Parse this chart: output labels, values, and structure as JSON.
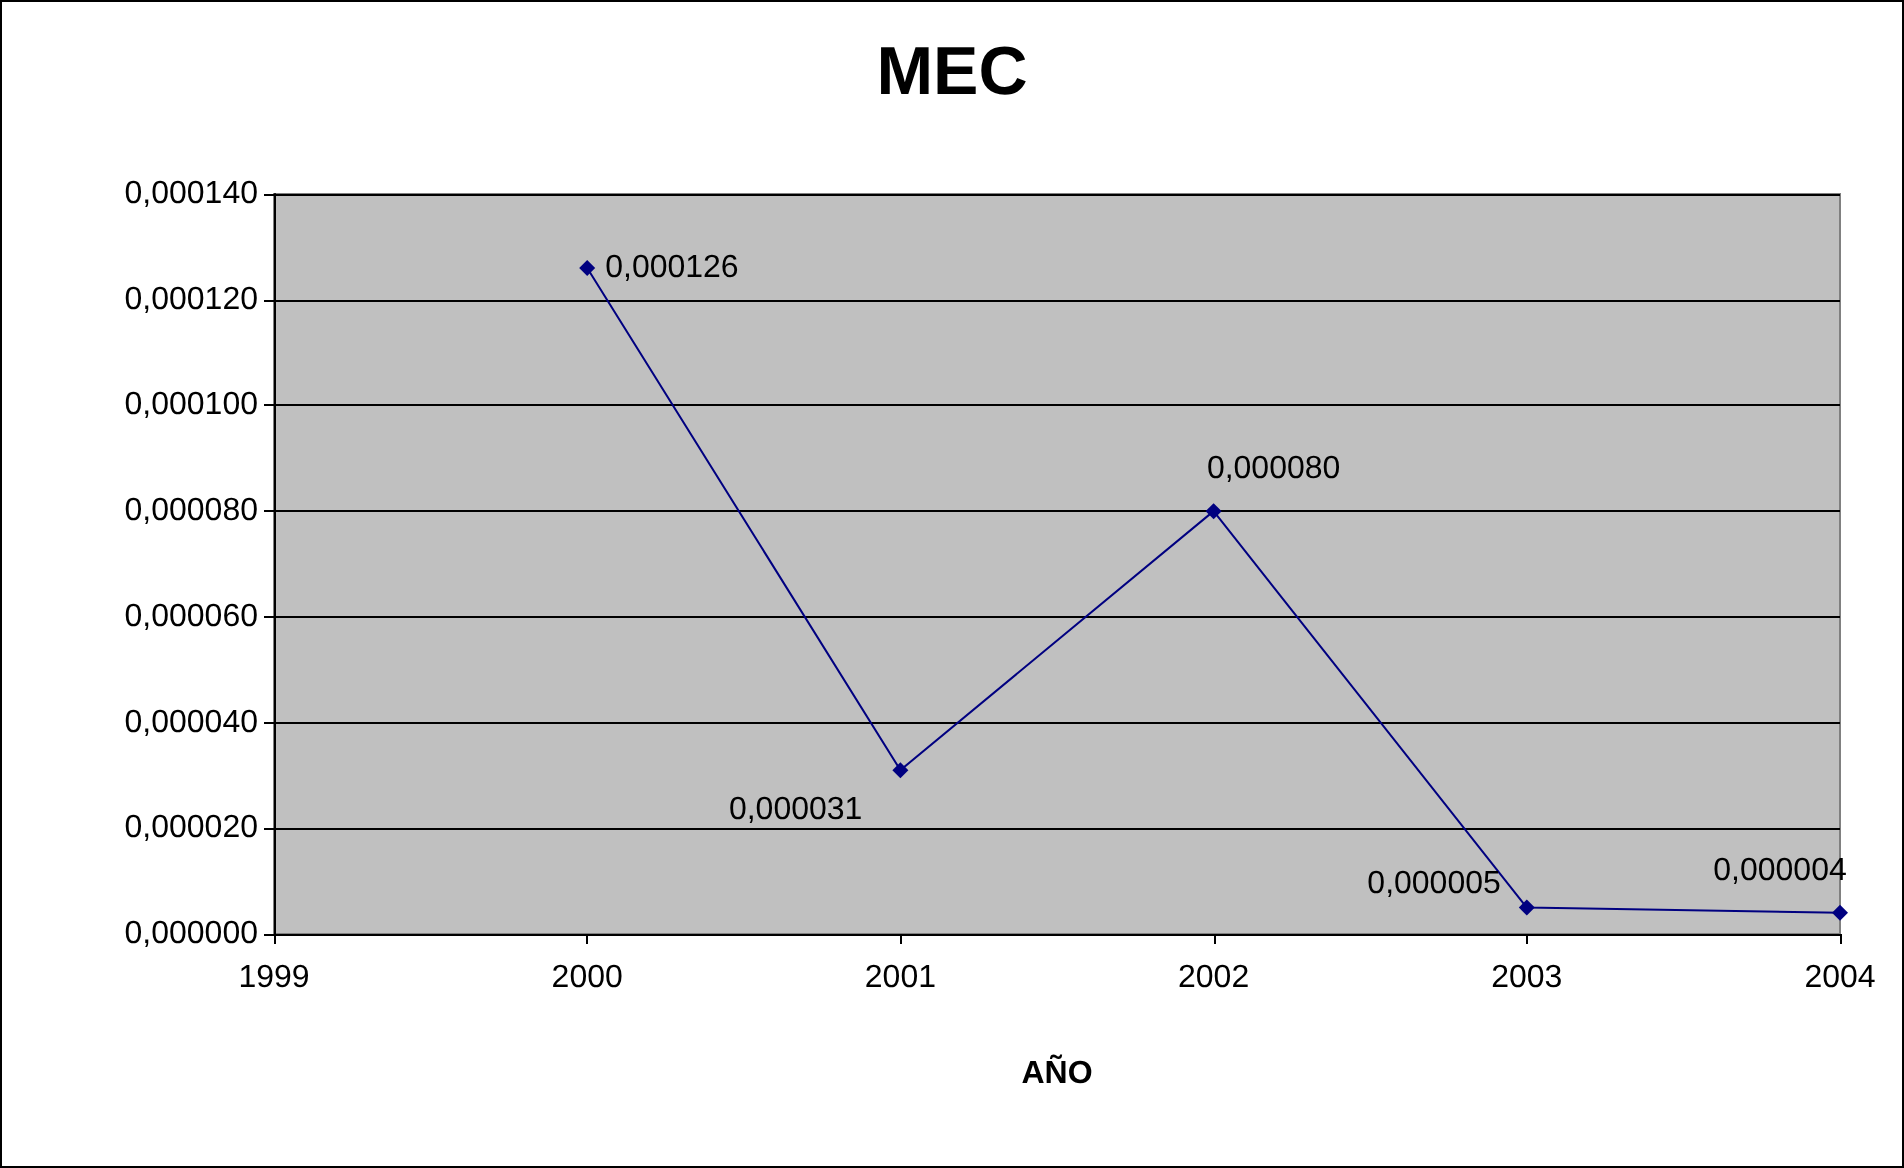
{
  "chart_data": {
    "type": "line",
    "title": "MEC",
    "xlabel": "AÑO",
    "x": [
      2000,
      2001,
      2002,
      2003,
      2004
    ],
    "series": [
      {
        "color": "#000080",
        "values": [
          0.000126,
          3.1e-05,
          8e-05,
          5e-06,
          4e-06
        ],
        "value_labels": [
          "0,000126",
          "0,000031",
          "0,000080",
          "0,000005",
          "0,000004"
        ]
      }
    ],
    "xlim": [
      1999,
      2004
    ],
    "xticks": [
      1999,
      2000,
      2001,
      2002,
      2003,
      2004
    ],
    "ylim": [
      0,
      0.00014
    ],
    "yticks": [
      {
        "value": 0,
        "label": "0,000000"
      },
      {
        "value": 2e-05,
        "label": "0,000020"
      },
      {
        "value": 4e-05,
        "label": "0,000040"
      },
      {
        "value": 6e-05,
        "label": "0,000060"
      },
      {
        "value": 8e-05,
        "label": "0,000080"
      },
      {
        "value": 0.0001,
        "label": "0,000100"
      },
      {
        "value": 0.00012,
        "label": "0,000120"
      },
      {
        "value": 0.00014,
        "label": "0,000140"
      }
    ],
    "grid": "y",
    "marker": "diamond",
    "line_style": "solid"
  }
}
